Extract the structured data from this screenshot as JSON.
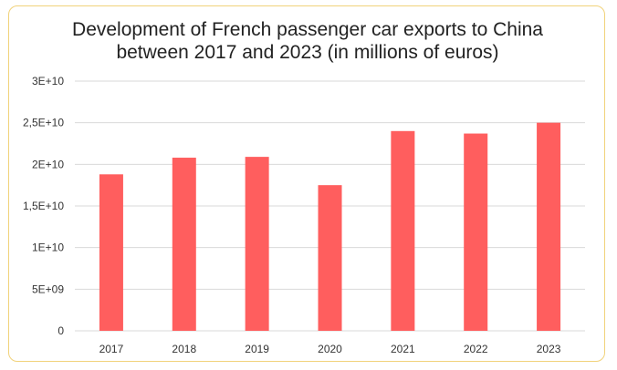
{
  "chart_data": {
    "type": "bar",
    "title_lines": [
      "Development of French passenger car exports to China",
      "between 2017 and 2023 (in millions of euros)"
    ],
    "categories": [
      "2017",
      "2018",
      "2019",
      "2020",
      "2021",
      "2022",
      "2023"
    ],
    "values": [
      18800000000,
      20800000000,
      20900000000,
      17500000000,
      24000000000,
      23700000000,
      25000000000
    ],
    "ylim": [
      0,
      30000000000
    ],
    "yticks": [
      0,
      5000000000,
      10000000000,
      15000000000,
      20000000000,
      25000000000,
      30000000000
    ],
    "ytick_labels": [
      "0",
      "5E+09",
      "1E+10",
      "1,5E+10",
      "2E+10",
      "2,5E+10",
      "3E+10"
    ],
    "grid": true,
    "legend": "none",
    "bar_color": "#ff5e5e",
    "grid_color": "#d9d9d9"
  }
}
